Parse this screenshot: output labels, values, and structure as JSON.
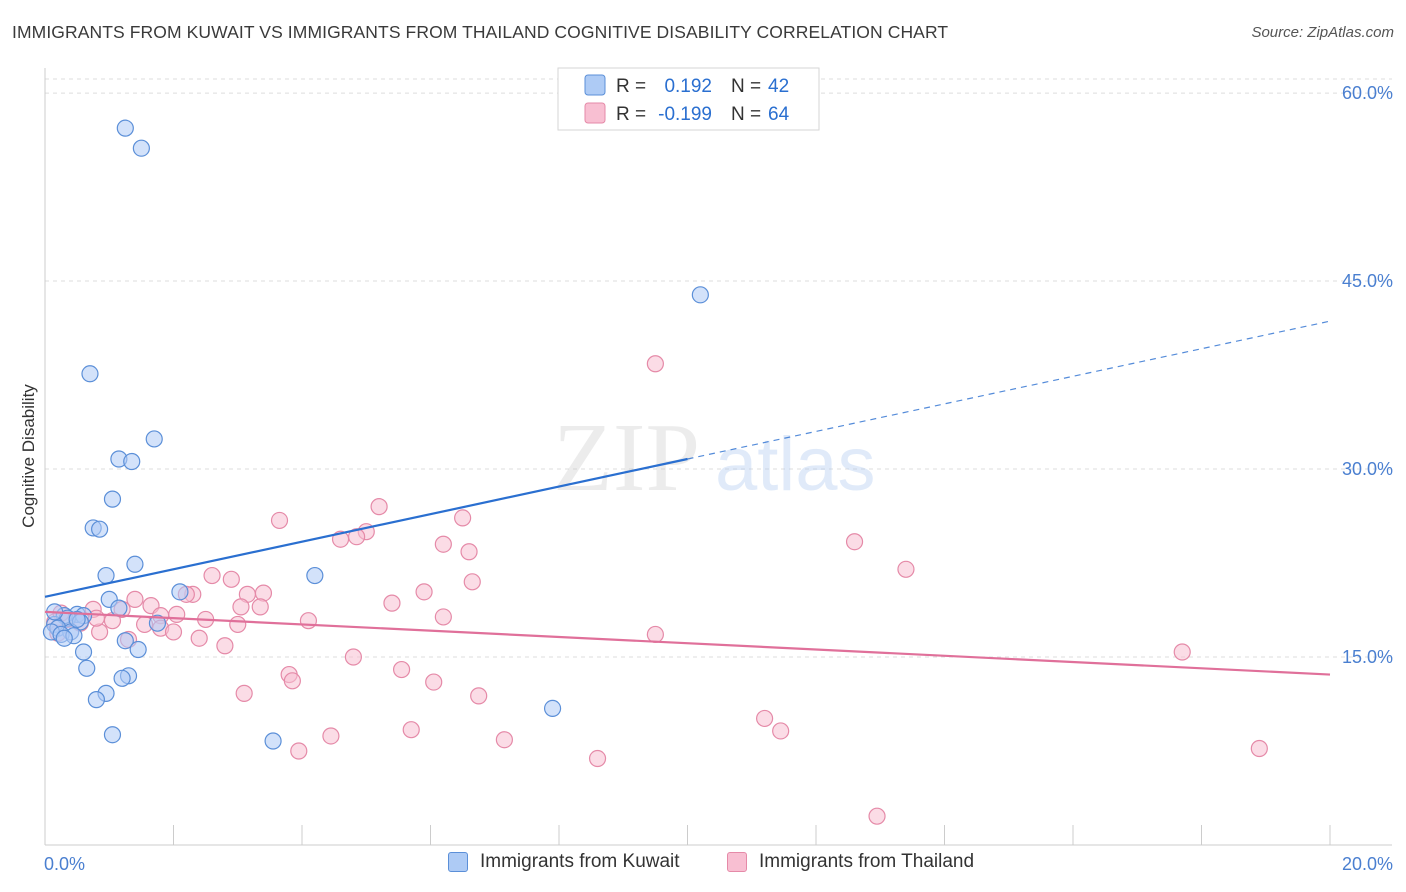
{
  "title": "IMMIGRANTS FROM KUWAIT VS IMMIGRANTS FROM THAILAND COGNITIVE DISABILITY CORRELATION CHART",
  "source": "Source: ZipAtlas.com",
  "watermark": {
    "zip": "ZIP",
    "atlas": "atlas"
  },
  "colors": {
    "kuwait_fill": "#aecbf5",
    "kuwait_stroke": "#5b8fd8",
    "kuwait_line": "#2a6fd0",
    "thailand_fill": "#f8bfd2",
    "thailand_stroke": "#e58aa8",
    "thailand_line": "#e0709a",
    "tick_text": "#4a7fd0",
    "grid": "#dddddd"
  },
  "legend": {
    "rows": [
      {
        "r_label": "R =",
        "r_value": "0.192",
        "n_label": "N =",
        "n_value": "42",
        "series": "kuwait"
      },
      {
        "r_label": "R =",
        "r_value": "-0.199",
        "n_label": "N =",
        "n_value": "64",
        "series": "thailand"
      }
    ]
  },
  "bottom_legend": [
    "Immigrants from Kuwait",
    "Immigrants from Thailand"
  ],
  "chart_data": {
    "type": "scatter",
    "title": "IMMIGRANTS FROM KUWAIT VS IMMIGRANTS FROM THAILAND COGNITIVE DISABILITY CORRELATION CHART",
    "xlabel": "",
    "ylabel": "Cognitive Disability",
    "xlim": [
      0,
      20
    ],
    "ylim": [
      0,
      62
    ],
    "x_tick_labels": [
      {
        "value": 0,
        "label": "0.0%"
      },
      {
        "value": 20,
        "label": "20.0%"
      }
    ],
    "y_tick_labels": [
      {
        "value": 15,
        "label": "15.0%"
      },
      {
        "value": 30,
        "label": "30.0%"
      },
      {
        "value": 45,
        "label": "45.0%"
      },
      {
        "value": 60,
        "label": "60.0%"
      }
    ],
    "grid": true,
    "legend_position": "top-center",
    "series": [
      {
        "name": "Immigrants from Kuwait",
        "R": 0.192,
        "N": 42,
        "trend": {
          "x0": 0,
          "y0": 19.8,
          "x1": 20,
          "y1": 41.8,
          "solid_until_x": 10
        },
        "points": [
          [
            1.25,
            57.2
          ],
          [
            1.5,
            55.6
          ],
          [
            10.2,
            43.9
          ],
          [
            0.7,
            37.6
          ],
          [
            1.7,
            32.4
          ],
          [
            1.15,
            30.8
          ],
          [
            1.35,
            30.6
          ],
          [
            1.05,
            27.6
          ],
          [
            0.75,
            25.3
          ],
          [
            0.85,
            25.2
          ],
          [
            1.4,
            22.4
          ],
          [
            0.95,
            21.5
          ],
          [
            4.2,
            21.5
          ],
          [
            2.1,
            20.2
          ],
          [
            1.0,
            19.6
          ],
          [
            1.15,
            18.9
          ],
          [
            0.5,
            18.4
          ],
          [
            0.6,
            18.3
          ],
          [
            0.3,
            18.3
          ],
          [
            0.35,
            18.1
          ],
          [
            1.75,
            17.7
          ],
          [
            0.55,
            17.8
          ],
          [
            0.15,
            17.6
          ],
          [
            0.2,
            17.3
          ],
          [
            0.1,
            17.0
          ],
          [
            0.4,
            17.0
          ],
          [
            0.25,
            16.8
          ],
          [
            0.45,
            16.7
          ],
          [
            0.3,
            16.5
          ],
          [
            1.25,
            16.3
          ],
          [
            1.45,
            15.6
          ],
          [
            0.6,
            15.4
          ],
          [
            0.65,
            14.1
          ],
          [
            1.3,
            13.5
          ],
          [
            1.2,
            13.3
          ],
          [
            0.95,
            12.1
          ],
          [
            0.8,
            11.6
          ],
          [
            7.9,
            10.9
          ],
          [
            1.05,
            8.8
          ],
          [
            3.55,
            8.3
          ],
          [
            0.15,
            18.6
          ],
          [
            0.5,
            18.0
          ]
        ]
      },
      {
        "name": "Immigrants from Thailand",
        "R": -0.199,
        "N": 64,
        "trend": {
          "x0": 0,
          "y0": 18.6,
          "x1": 20,
          "y1": 13.6
        },
        "points": [
          [
            9.5,
            38.4
          ],
          [
            5.2,
            27.0
          ],
          [
            6.5,
            26.1
          ],
          [
            3.65,
            25.9
          ],
          [
            5.0,
            25.0
          ],
          [
            4.85,
            24.6
          ],
          [
            4.6,
            24.4
          ],
          [
            6.2,
            24.0
          ],
          [
            12.6,
            24.2
          ],
          [
            6.6,
            23.4
          ],
          [
            13.4,
            22.0
          ],
          [
            2.6,
            21.5
          ],
          [
            2.9,
            21.2
          ],
          [
            6.65,
            21.0
          ],
          [
            3.4,
            20.1
          ],
          [
            3.15,
            20.0
          ],
          [
            2.3,
            20.0
          ],
          [
            5.9,
            20.2
          ],
          [
            2.2,
            20.0
          ],
          [
            1.4,
            19.6
          ],
          [
            5.4,
            19.3
          ],
          [
            3.05,
            19.0
          ],
          [
            1.65,
            19.1
          ],
          [
            3.35,
            19.0
          ],
          [
            1.2,
            18.8
          ],
          [
            0.75,
            18.8
          ],
          [
            2.05,
            18.4
          ],
          [
            1.8,
            18.3
          ],
          [
            6.2,
            18.2
          ],
          [
            0.35,
            18.0
          ],
          [
            2.5,
            18.0
          ],
          [
            4.1,
            17.9
          ],
          [
            1.05,
            17.9
          ],
          [
            0.55,
            17.7
          ],
          [
            0.15,
            17.8
          ],
          [
            1.55,
            17.6
          ],
          [
            3.0,
            17.6
          ],
          [
            0.85,
            17.0
          ],
          [
            1.8,
            17.3
          ],
          [
            2.0,
            17.0
          ],
          [
            0.2,
            16.9
          ],
          [
            9.5,
            16.8
          ],
          [
            2.4,
            16.5
          ],
          [
            1.3,
            16.4
          ],
          [
            2.8,
            15.9
          ],
          [
            17.7,
            15.4
          ],
          [
            5.55,
            14.0
          ],
          [
            3.8,
            13.6
          ],
          [
            3.85,
            13.1
          ],
          [
            6.05,
            13.0
          ],
          [
            3.1,
            12.1
          ],
          [
            6.75,
            11.9
          ],
          [
            11.2,
            10.1
          ],
          [
            5.7,
            9.2
          ],
          [
            11.45,
            9.1
          ],
          [
            4.45,
            8.7
          ],
          [
            7.15,
            8.4
          ],
          [
            3.95,
            7.5
          ],
          [
            18.9,
            7.7
          ],
          [
            8.6,
            6.9
          ],
          [
            12.95,
            2.3
          ],
          [
            0.25,
            18.5
          ],
          [
            0.8,
            18.1
          ],
          [
            4.8,
            15.0
          ]
        ]
      }
    ]
  }
}
